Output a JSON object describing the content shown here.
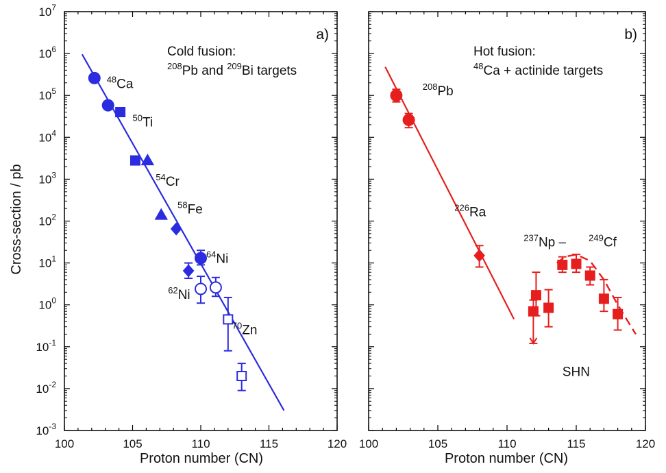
{
  "chart_data": [
    {
      "type": "scatter",
      "panel_tag": "a)",
      "annotation_line1": "Cold fusion:",
      "annotation_line2": {
        "m1": "208",
        "t1": "Pb and ",
        "m2": "209",
        "t2": "Bi targets"
      },
      "xlabel": "Proton number (CN)",
      "ylabel": "Cross-section / pb",
      "xlim": [
        100,
        120
      ],
      "ylim_log10": [
        -3,
        7
      ],
      "y_scale": "log",
      "x_ticks": [
        "100",
        "105",
        "110",
        "115",
        "120"
      ],
      "y_ticks": [
        {
          "base": "10",
          "exp": "-3"
        },
        {
          "base": "10",
          "exp": "-2"
        },
        {
          "base": "10",
          "exp": "-1"
        },
        {
          "base": "10",
          "exp": "0"
        },
        {
          "base": "10",
          "exp": "1"
        },
        {
          "base": "10",
          "exp": "2"
        },
        {
          "base": "10",
          "exp": "3"
        },
        {
          "base": "10",
          "exp": "4"
        },
        {
          "base": "10",
          "exp": "5"
        },
        {
          "base": "10",
          "exp": "6"
        },
        {
          "base": "10",
          "exp": "7"
        }
      ],
      "color": "#2b2be0",
      "fit_line": {
        "x": [
          101.3,
          116.1
        ],
        "log10_y": [
          5.98,
          -2.52
        ]
      },
      "points": [
        {
          "x": 102.2,
          "y": 260000,
          "marker": "circle",
          "filled": true
        },
        {
          "x": 103.2,
          "y": 58000,
          "marker": "circle",
          "filled": true
        },
        {
          "x": 104.1,
          "y": 40000,
          "marker": "square",
          "filled": true
        },
        {
          "x": 105.2,
          "y": 2800,
          "marker": "square",
          "filled": true
        },
        {
          "x": 106.1,
          "y": 2800,
          "marker": "triangle",
          "filled": true
        },
        {
          "x": 107.1,
          "y": 140,
          "marker": "triangle",
          "filled": true
        },
        {
          "x": 108.2,
          "y": 65,
          "marker": "diamond",
          "filled": true
        },
        {
          "x": 109.1,
          "y": 6.5,
          "y_err": [
            4.3,
            10
          ],
          "marker": "diamond",
          "filled": true
        },
        {
          "x": 110.0,
          "y": 13,
          "y_err": [
            9,
            20
          ],
          "marker": "circle",
          "filled": true
        },
        {
          "x": 110.0,
          "y": 2.4,
          "y_err": [
            1.1,
            4.8
          ],
          "marker": "circle",
          "filled": false
        },
        {
          "x": 111.1,
          "y": 2.6,
          "y_err": [
            1.6,
            4.5
          ],
          "marker": "circle",
          "filled": false
        },
        {
          "x": 112.0,
          "y": 0.45,
          "y_err": [
            0.08,
            1.5
          ],
          "marker": "square",
          "filled": false
        },
        {
          "x": 113.0,
          "y": 0.02,
          "y_err": [
            0.009,
            0.04
          ],
          "marker": "square",
          "filled": false
        }
      ],
      "labels": [
        {
          "mass": "48",
          "el": "Ca",
          "x": 103.1,
          "y": 150000
        },
        {
          "mass": "50",
          "el": "Ti",
          "x": 105.0,
          "y": 18000
        },
        {
          "mass": "54",
          "el": "Cr",
          "x": 106.7,
          "y": 700
        },
        {
          "mass": "58",
          "el": "Fe",
          "x": 108.3,
          "y": 150
        },
        {
          "mass": "64",
          "el": "Ni",
          "x": 110.4,
          "y": 10
        },
        {
          "mass": "62",
          "el": "Ni",
          "x": 107.6,
          "y": 1.4
        },
        {
          "mass": "70",
          "el": "Zn",
          "x": 112.3,
          "y": 0.2
        }
      ]
    },
    {
      "type": "scatter",
      "panel_tag": "b)",
      "annotation_line1": "Hot fusion:",
      "annotation_line2": {
        "m1": "48",
        "t1": "Ca + actinide targets",
        "m2": "",
        "t2": ""
      },
      "xlabel": "Proton number (CN)",
      "xlim": [
        100,
        120
      ],
      "ylim_log10": [
        -3,
        7
      ],
      "y_scale": "log",
      "x_ticks": [
        "100",
        "105",
        "110",
        "115",
        "120"
      ],
      "color": "#e61e1e",
      "fit_line": {
        "x": [
          101.2,
          110.5
        ],
        "log10_y": [
          5.68,
          -0.34
        ]
      },
      "dashed_curve": {
        "x": [
          113.6,
          114.2,
          115.0,
          116.0,
          117.0,
          118.0,
          119.3
        ],
        "log10_y": [
          1.0,
          1.15,
          1.2,
          1.05,
          0.6,
          0.0,
          -0.7
        ]
      },
      "points": [
        {
          "x": 102.0,
          "y": 100000,
          "y_err": [
            70000,
            140000
          ],
          "marker": "circle",
          "filled": true
        },
        {
          "x": 102.9,
          "y": 26000,
          "y_err": [
            17000,
            37000
          ],
          "marker": "circle",
          "filled": true
        },
        {
          "x": 108.0,
          "y": 15,
          "y_err": [
            8,
            26
          ],
          "marker": "diamond",
          "filled": true
        },
        {
          "x": 111.9,
          "y": 0.7,
          "y_err": [
            0.12,
            1.3
          ],
          "marker": "square",
          "filled": true,
          "upper_limit": true
        },
        {
          "x": 112.1,
          "y": 1.7,
          "y_err": [
            0.55,
            6
          ],
          "marker": "square",
          "filled": true
        },
        {
          "x": 113.0,
          "y": 0.85,
          "y_err": [
            0.3,
            2.3
          ],
          "marker": "square",
          "filled": true
        },
        {
          "x": 114.0,
          "y": 9,
          "y_err": [
            6,
            14
          ],
          "marker": "square",
          "filled": true
        },
        {
          "x": 115.0,
          "y": 9.5,
          "y_err": [
            6,
            16
          ],
          "marker": "square",
          "filled": true
        },
        {
          "x": 116.0,
          "y": 5,
          "y_err": [
            3,
            8
          ],
          "marker": "square",
          "filled": true
        },
        {
          "x": 117.0,
          "y": 1.4,
          "y_err": [
            0.7,
            4
          ],
          "marker": "square",
          "filled": true
        },
        {
          "x": 118.0,
          "y": 0.6,
          "y_err": [
            0.25,
            1.5
          ],
          "marker": "square",
          "filled": true
        }
      ],
      "labels": [
        {
          "mass": "208",
          "el": "Pb",
          "x": 103.9,
          "y": 100000
        },
        {
          "mass": "226",
          "el": "Ra",
          "x": 106.2,
          "y": 130
        },
        {
          "mass": "237",
          "el": "Np   –   ",
          "x": 111.2,
          "y": 25
        },
        {
          "mass": "249",
          "el": "Cf",
          "x": 115.9,
          "y": 25
        }
      ],
      "extra_text": {
        "text": "SHN",
        "x": 114.0,
        "y": 0.02
      }
    }
  ]
}
